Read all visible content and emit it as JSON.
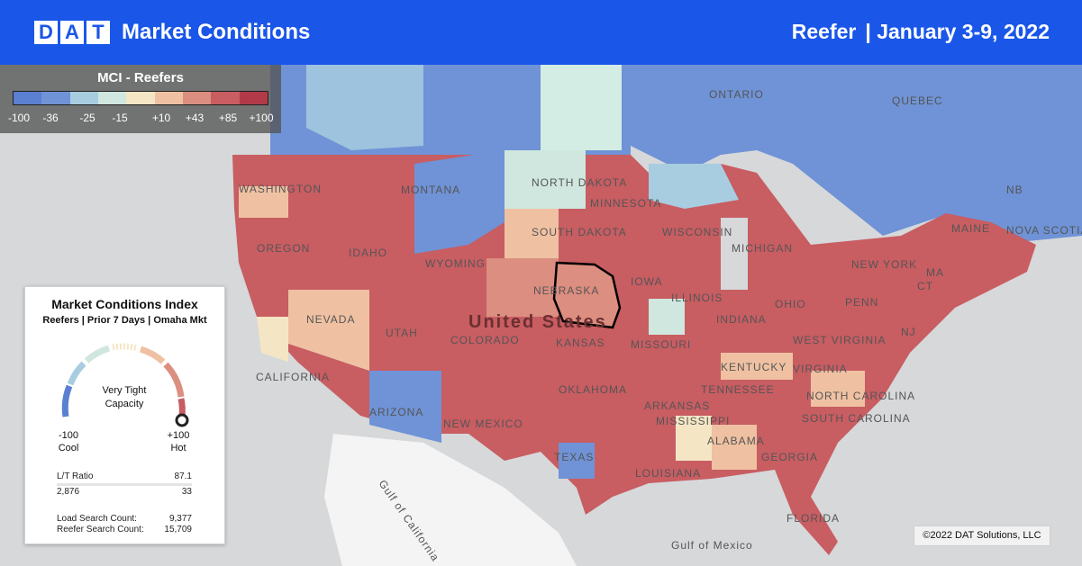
{
  "header": {
    "logo_letters": [
      "D",
      "A",
      "T"
    ],
    "brand": "Market Conditions",
    "equipment": "Reefer",
    "date_range": "| January 3-9, 2022",
    "background": "#1a56e8"
  },
  "legend": {
    "title": "MCI - Reefers",
    "colors": [
      "#5b7fd1",
      "#6f93d6",
      "#a8cde0",
      "#cfe7de",
      "#f4e6c4",
      "#efc1a2",
      "#dc8e80",
      "#c85d62",
      "#b23a48"
    ],
    "ticks": [
      "-100",
      "-36",
      "-25",
      "-15",
      "+10",
      "+43",
      "+85",
      "+100"
    ]
  },
  "map_labels": {
    "regions": [
      "ONTARIO",
      "QUEBEC",
      "NB",
      "NOVA SCOTIA",
      "WASHINGTON",
      "OREGON",
      "IDAHO",
      "MONTANA",
      "NORTH DAKOTA",
      "SOUTH DAKOTA",
      "WYOMING",
      "NEBRASKA",
      "MINNESOTA",
      "WISCONSIN",
      "MICHIGAN",
      "IOWA",
      "NEVADA",
      "UTAH",
      "COLORADO",
      "KANSAS",
      "CALIFORNIA",
      "ARIZONA",
      "NEW MEXICO",
      "OKLAHOMA",
      "TEXAS",
      "MISSOURI",
      "ILLINOIS",
      "INDIANA",
      "OHIO",
      "KENTUCKY",
      "TENNESSEE",
      "ARKANSAS",
      "MISSISSIPPI",
      "ALABAMA",
      "GEORGIA",
      "LOUISIANA",
      "FLORIDA",
      "SOUTH CAROLINA",
      "NORTH CAROLINA",
      "VIRGINIA",
      "WEST VIRGINIA",
      "PENN",
      "NEW YORK",
      "MAINE",
      "NJ",
      "MA",
      "CT"
    ],
    "country": "United States",
    "waters": [
      "Gulf of California",
      "Gulf of Mexico"
    ]
  },
  "panel": {
    "title": "Market Conditions Index",
    "subtitle": "Reefers | Prior 7 Days | Omaha Mkt",
    "gauge_text": [
      "Very Tight",
      "Capacity"
    ],
    "gauge_value": 100,
    "min_value": "-100",
    "min_label": "Cool",
    "max_value": "+100",
    "max_label": "Hot",
    "lt_ratio_label": "L/T Ratio",
    "lt_ratio_value": "87.1",
    "loads": "2,876",
    "trucks": "33",
    "load_search_label": "Load Search Count:",
    "load_search_value": "9,377",
    "reefer_search_label": "Reefer Search Count:",
    "reefer_search_value": "15,709"
  },
  "credit": "©2022 DAT Solutions, LLC"
}
